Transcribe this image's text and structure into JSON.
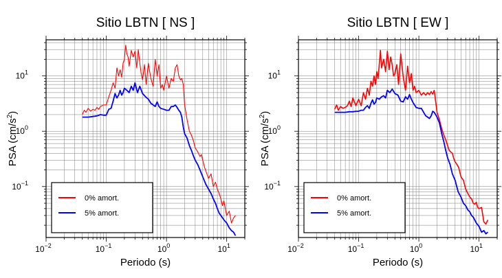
{
  "chart_data": [
    {
      "type": "line",
      "title": "Sitio LBTN [ NS ]",
      "xlabel": "Periodo (s)",
      "ylabel_main": "PSA (cm/s",
      "ylabel_sup": "2",
      "ylabel_close": ")",
      "xscale": "log",
      "yscale": "log",
      "xlim": [
        0.01,
        20
      ],
      "ylim": [
        0.012,
        45
      ],
      "grid": true,
      "legend_position": "bottom-left",
      "xticks": [
        {
          "value": 0.01,
          "base": "10",
          "exp": "−2"
        },
        {
          "value": 0.1,
          "base": "10",
          "exp": "−1"
        },
        {
          "value": 1,
          "base": "10",
          "exp": "0"
        },
        {
          "value": 10,
          "base": "10",
          "exp": "1"
        }
      ],
      "yticks": [
        {
          "value": 0.1,
          "base": "10",
          "exp": "−1"
        },
        {
          "value": 1,
          "base": "10",
          "exp": "0"
        },
        {
          "value": 10,
          "base": "10",
          "exp": "1"
        }
      ],
      "series": [
        {
          "name": "0% amort.",
          "color": "#ff0000",
          "x": [
            0.04,
            0.043,
            0.046,
            0.05,
            0.055,
            0.06,
            0.065,
            0.07,
            0.075,
            0.08,
            0.09,
            0.1,
            0.11,
            0.12,
            0.13,
            0.14,
            0.15,
            0.16,
            0.17,
            0.18,
            0.19,
            0.2,
            0.21,
            0.22,
            0.23,
            0.24,
            0.26,
            0.28,
            0.3,
            0.32,
            0.34,
            0.36,
            0.38,
            0.4,
            0.43,
            0.46,
            0.5,
            0.55,
            0.6,
            0.65,
            0.7,
            0.75,
            0.8,
            0.85,
            0.9,
            1.0,
            1.1,
            1.2,
            1.3,
            1.4,
            1.5,
            1.6,
            1.7,
            1.8,
            1.9,
            2.0,
            2.2,
            2.4,
            2.6,
            2.8,
            3.0,
            3.2,
            3.4,
            3.6,
            3.8,
            4.0,
            4.3,
            4.6,
            5.0,
            5.5,
            6.0,
            6.5,
            7.0,
            7.5,
            8.0,
            8.5,
            9.0,
            9.5,
            10,
            11,
            12,
            13,
            14
          ],
          "y": [
            2.0,
            2.4,
            2.2,
            2.6,
            2.3,
            2.5,
            2.4,
            2.7,
            2.5,
            2.8,
            3.0,
            3.0,
            4.2,
            5.5,
            7.5,
            6.0,
            14,
            10,
            13,
            9.5,
            17,
            20,
            36,
            25,
            22,
            15,
            29,
            22,
            28,
            14,
            30,
            17,
            11,
            8.5,
            16,
            7.0,
            17,
            9.0,
            6.5,
            20,
            10,
            16,
            6.0,
            7.0,
            5.5,
            10,
            6.0,
            9.0,
            8.0,
            14,
            16,
            10,
            8.5,
            9.0,
            7.0,
            3.0,
            1.6,
            1.0,
            0.85,
            0.68,
            0.5,
            0.45,
            0.4,
            0.35,
            0.38,
            0.3,
            0.22,
            0.18,
            0.14,
            0.17,
            0.1,
            0.12,
            0.09,
            0.075,
            0.06,
            0.045,
            0.055,
            0.04,
            0.03,
            0.036,
            0.022,
            0.027,
            0.03
          ]
        },
        {
          "name": "5% amort.",
          "color": "#0000ff",
          "x": [
            0.04,
            0.045,
            0.05,
            0.06,
            0.07,
            0.08,
            0.09,
            0.1,
            0.11,
            0.12,
            0.13,
            0.14,
            0.15,
            0.16,
            0.17,
            0.18,
            0.19,
            0.2,
            0.22,
            0.24,
            0.26,
            0.28,
            0.3,
            0.33,
            0.36,
            0.4,
            0.45,
            0.5,
            0.55,
            0.6,
            0.65,
            0.7,
            0.75,
            0.8,
            0.9,
            1.0,
            1.1,
            1.2,
            1.3,
            1.4,
            1.5,
            1.6,
            1.7,
            1.8,
            1.9,
            2.0,
            2.2,
            2.4,
            2.6,
            2.8,
            3.0,
            3.3,
            3.6,
            4.0,
            4.5,
            5.0,
            5.5,
            6.0,
            6.5,
            7.0,
            7.5,
            8.0,
            9.0,
            10,
            11,
            12,
            13,
            14
          ],
          "y": [
            1.8,
            1.8,
            1.8,
            1.85,
            1.9,
            2.0,
            1.95,
            1.95,
            2.5,
            2.6,
            3.5,
            4.8,
            4.0,
            4.5,
            5.5,
            4.5,
            5.0,
            6.0,
            5.5,
            5.0,
            6.5,
            5.5,
            7.5,
            5.0,
            6.5,
            4.8,
            4.2,
            3.8,
            3.2,
            3.0,
            2.8,
            3.4,
            2.8,
            2.6,
            2.5,
            2.4,
            2.4,
            2.8,
            2.8,
            3.0,
            2.7,
            2.4,
            2.2,
            1.8,
            1.2,
            0.9,
            0.75,
            0.55,
            0.45,
            0.36,
            0.3,
            0.25,
            0.2,
            0.15,
            0.11,
            0.09,
            0.075,
            0.06,
            0.05,
            0.04,
            0.033,
            0.03,
            0.025,
            0.022,
            0.018,
            0.016,
            0.015,
            0.013
          ]
        }
      ]
    },
    {
      "type": "line",
      "title": "Sitio LBTN [ EW ]",
      "xlabel": "Periodo (s)",
      "ylabel_main": "PSA (cm/s",
      "ylabel_sup": "2",
      "ylabel_close": ")",
      "xscale": "log",
      "yscale": "log",
      "xlim": [
        0.01,
        20
      ],
      "ylim": [
        0.012,
        45
      ],
      "grid": true,
      "legend_position": "bottom-left",
      "xticks": [
        {
          "value": 0.01,
          "base": "10",
          "exp": "−2"
        },
        {
          "value": 0.1,
          "base": "10",
          "exp": "−1"
        },
        {
          "value": 1,
          "base": "10",
          "exp": "0"
        },
        {
          "value": 10,
          "base": "10",
          "exp": "1"
        }
      ],
      "yticks": [
        {
          "value": 0.1,
          "base": "10",
          "exp": "−1"
        },
        {
          "value": 1,
          "base": "10",
          "exp": "0"
        },
        {
          "value": 10,
          "base": "10",
          "exp": "1"
        }
      ],
      "series": [
        {
          "name": "0% amort.",
          "color": "#ff0000",
          "x": [
            0.04,
            0.043,
            0.046,
            0.05,
            0.055,
            0.06,
            0.065,
            0.07,
            0.075,
            0.08,
            0.09,
            0.1,
            0.11,
            0.12,
            0.13,
            0.14,
            0.15,
            0.16,
            0.17,
            0.18,
            0.19,
            0.2,
            0.21,
            0.22,
            0.23,
            0.24,
            0.26,
            0.28,
            0.3,
            0.32,
            0.34,
            0.36,
            0.38,
            0.4,
            0.43,
            0.46,
            0.5,
            0.55,
            0.6,
            0.65,
            0.7,
            0.75,
            0.8,
            0.85,
            0.9,
            1.0,
            1.1,
            1.2,
            1.3,
            1.4,
            1.5,
            1.6,
            1.7,
            1.8,
            1.9,
            2.0,
            2.2,
            2.4,
            2.6,
            2.8,
            3.0,
            3.2,
            3.4,
            3.6,
            3.8,
            4.0,
            4.3,
            4.6,
            5.0,
            5.5,
            6.0,
            6.5,
            7.0,
            7.5,
            8.0,
            8.5,
            9.0,
            9.5,
            10,
            11,
            12,
            13,
            14
          ],
          "y": [
            2.5,
            3.0,
            2.4,
            2.8,
            2.6,
            2.7,
            2.9,
            3.5,
            2.8,
            4.0,
            2.9,
            3.8,
            2.9,
            5.0,
            3.8,
            6.0,
            4.5,
            8.0,
            6.5,
            10,
            7.0,
            12,
            9.0,
            16,
            29,
            14,
            20,
            12,
            28,
            13,
            22,
            16,
            10,
            11,
            16,
            7.0,
            25,
            9.5,
            5.5,
            15,
            7.5,
            11,
            5.5,
            6.5,
            5.0,
            5.5,
            4.5,
            5.0,
            4.5,
            5.0,
            4.6,
            5.2,
            4.7,
            5.5,
            3.5,
            2.2,
            1.6,
            1.1,
            0.85,
            0.7,
            0.55,
            0.45,
            0.42,
            0.4,
            0.32,
            0.28,
            0.25,
            0.22,
            0.15,
            0.13,
            0.09,
            0.075,
            0.065,
            0.06,
            0.05,
            0.048,
            0.052,
            0.042,
            0.04,
            0.042,
            0.023,
            0.021,
            0.025
          ]
        },
        {
          "name": "5% amort.",
          "color": "#0000ff",
          "x": [
            0.04,
            0.045,
            0.05,
            0.06,
            0.07,
            0.08,
            0.09,
            0.1,
            0.11,
            0.12,
            0.13,
            0.14,
            0.15,
            0.16,
            0.17,
            0.18,
            0.19,
            0.2,
            0.22,
            0.24,
            0.26,
            0.28,
            0.3,
            0.33,
            0.36,
            0.4,
            0.45,
            0.5,
            0.55,
            0.6,
            0.65,
            0.7,
            0.75,
            0.8,
            0.9,
            1.0,
            1.1,
            1.2,
            1.3,
            1.4,
            1.5,
            1.6,
            1.7,
            1.8,
            1.9,
            2.0,
            2.2,
            2.4,
            2.6,
            2.8,
            3.0,
            3.3,
            3.6,
            4.0,
            4.5,
            5.0,
            5.5,
            6.0,
            6.5,
            7.0,
            7.5,
            8.0,
            9.0,
            10,
            11,
            12,
            13,
            14
          ],
          "y": [
            2.2,
            2.2,
            2.2,
            2.2,
            2.25,
            2.25,
            2.3,
            2.3,
            2.4,
            2.4,
            2.7,
            2.9,
            2.6,
            3.2,
            3.7,
            3.1,
            3.3,
            4.0,
            3.8,
            4.2,
            4.4,
            4.0,
            5.5,
            5.0,
            5.8,
            4.8,
            4.5,
            3.5,
            3.4,
            4.2,
            3.8,
            4.6,
            3.8,
            3.3,
            2.7,
            2.6,
            2.6,
            2.2,
            1.9,
            1.8,
            1.7,
            1.9,
            2.3,
            2.2,
            2.0,
            1.8,
            1.4,
            0.9,
            0.65,
            0.45,
            0.33,
            0.25,
            0.17,
            0.13,
            0.08,
            0.065,
            0.05,
            0.045,
            0.038,
            0.035,
            0.03,
            0.028,
            0.022,
            0.019,
            0.015,
            0.016,
            0.014,
            0.015
          ]
        }
      ]
    }
  ]
}
